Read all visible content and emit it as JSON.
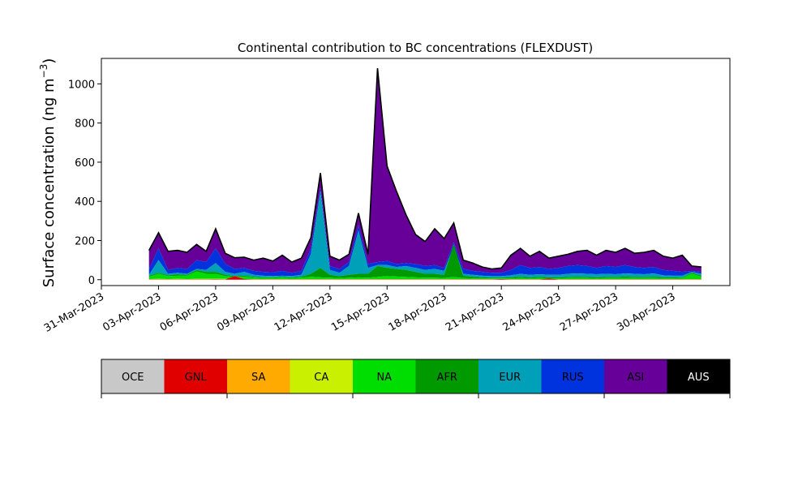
{
  "chart_data": {
    "type": "area",
    "title": "Continental contribution to BC concentrations (FLEXDUST)",
    "ylabel_main": "Surface concentration (ng m",
    "ylabel_sup": "−3",
    "ylabel_close": ")",
    "xlabel": "",
    "x_start": "2023-04-02",
    "ylim": [
      -30,
      1130
    ],
    "xlim": [
      "2023-03-31T00:00",
      "2023-05-03T00:00"
    ],
    "yticks": [
      0,
      200,
      400,
      600,
      800,
      1000
    ],
    "xticks": [
      "31-Mar-2023",
      "03-Apr-2023",
      "06-Apr-2023",
      "09-Apr-2023",
      "12-Apr-2023",
      "15-Apr-2023",
      "18-Apr-2023",
      "21-Apr-2023",
      "24-Apr-2023",
      "27-Apr-2023",
      "30-Apr-2023"
    ],
    "xtick_dates": [
      "2023-03-31",
      "2023-04-03",
      "2023-04-06",
      "2023-04-09",
      "2023-04-12",
      "2023-04-15",
      "2023-04-18",
      "2023-04-21",
      "2023-04-24",
      "2023-04-27",
      "2023-04-30"
    ],
    "total_x": [
      "2023-04-02T12:00",
      "2023-04-03T00:00",
      "2023-04-03T12:00",
      "2023-04-04T00:00",
      "2023-04-04T12:00",
      "2023-04-05T00:00",
      "2023-04-05T12:00",
      "2023-04-06T00:00",
      "2023-04-06T12:00",
      "2023-04-07T00:00",
      "2023-04-07T12:00",
      "2023-04-08T00:00",
      "2023-04-08T12:00",
      "2023-04-09T00:00",
      "2023-04-09T12:00",
      "2023-04-10T00:00",
      "2023-04-10T12:00",
      "2023-04-11T00:00",
      "2023-04-11T12:00",
      "2023-04-12T00:00",
      "2023-04-12T12:00",
      "2023-04-13T00:00",
      "2023-04-13T12:00",
      "2023-04-14T00:00",
      "2023-04-14T12:00",
      "2023-04-15T00:00",
      "2023-04-15T12:00",
      "2023-04-16T00:00",
      "2023-04-16T12:00",
      "2023-04-17T00:00",
      "2023-04-17T12:00",
      "2023-04-18T00:00",
      "2023-04-18T12:00",
      "2023-04-19T00:00",
      "2023-04-19T12:00",
      "2023-04-20T00:00",
      "2023-04-20T12:00",
      "2023-04-21T00:00",
      "2023-04-21T12:00",
      "2023-04-22T00:00",
      "2023-04-22T12:00",
      "2023-04-23T00:00",
      "2023-04-23T12:00",
      "2023-04-24T00:00",
      "2023-04-24T12:00",
      "2023-04-25T00:00",
      "2023-04-25T12:00",
      "2023-04-26T00:00",
      "2023-04-26T12:00",
      "2023-04-27T00:00",
      "2023-04-27T12:00",
      "2023-04-28T00:00",
      "2023-04-28T12:00",
      "2023-04-29T00:00",
      "2023-04-29T12:00",
      "2023-04-30T00:00",
      "2023-04-30T12:00",
      "2023-05-01T00:00",
      "2023-05-01T12:00"
    ],
    "total_y": [
      150,
      240,
      145,
      150,
      140,
      180,
      145,
      260,
      135,
      112,
      115,
      100,
      110,
      95,
      125,
      90,
      110,
      215,
      545,
      120,
      100,
      130,
      340,
      130,
      1080,
      580,
      450,
      330,
      230,
      195,
      260,
      210,
      290,
      100,
      85,
      65,
      55,
      60,
      125,
      160,
      120,
      145,
      110,
      120,
      130,
      145,
      150,
      125,
      150,
      140,
      160,
      135,
      140,
      150,
      120,
      110,
      125,
      70,
      65
    ],
    "series": [
      {
        "name": "ASI",
        "values": [
          150,
          240,
          145,
          150,
          140,
          180,
          145,
          260,
          135,
          112,
          115,
          100,
          110,
          95,
          125,
          90,
          110,
          215,
          545,
          120,
          100,
          130,
          340,
          130,
          1080,
          580,
          450,
          330,
          230,
          195,
          260,
          210,
          290,
          100,
          85,
          65,
          55,
          60,
          125,
          160,
          120,
          145,
          110,
          120,
          130,
          145,
          150,
          125,
          150,
          140,
          160,
          135,
          140,
          150,
          120,
          110,
          125,
          70,
          65
        ]
      },
      {
        "name": "RUS",
        "values": [
          55,
          160,
          50,
          60,
          55,
          100,
          90,
          160,
          80,
          55,
          60,
          45,
          40,
          38,
          45,
          35,
          45,
          160,
          470,
          70,
          55,
          90,
          280,
          80,
          90,
          95,
          80,
          85,
          80,
          70,
          75,
          60,
          190,
          55,
          45,
          40,
          35,
          35,
          50,
          75,
          60,
          65,
          55,
          60,
          70,
          75,
          70,
          60,
          70,
          65,
          75,
          65,
          60,
          65,
          50,
          45,
          40,
          45,
          40
        ]
      },
      {
        "name": "EUR",
        "values": [
          25,
          100,
          30,
          35,
          30,
          55,
          50,
          85,
          40,
          30,
          40,
          25,
          20,
          18,
          20,
          18,
          25,
          130,
          450,
          50,
          35,
          70,
          250,
          60,
          75,
          75,
          65,
          70,
          60,
          50,
          55,
          45,
          170,
          30,
          25,
          20,
          18,
          18,
          22,
          30,
          25,
          28,
          25,
          25,
          30,
          32,
          30,
          28,
          30,
          28,
          32,
          30,
          28,
          32,
          22,
          20,
          20,
          40,
          30
        ]
      },
      {
        "name": "AFR",
        "values": [
          20,
          35,
          22,
          28,
          25,
          50,
          40,
          40,
          25,
          18,
          20,
          15,
          12,
          12,
          14,
          12,
          15,
          30,
          60,
          25,
          18,
          25,
          30,
          30,
          70,
          60,
          55,
          50,
          40,
          30,
          30,
          25,
          180,
          20,
          15,
          12,
          10,
          10,
          12,
          15,
          12,
          15,
          12,
          12,
          14,
          15,
          14,
          12,
          14,
          14,
          16,
          14,
          14,
          15,
          12,
          12,
          12,
          35,
          20
        ]
      },
      {
        "name": "NA",
        "values": [
          15,
          30,
          18,
          20,
          20,
          42,
          30,
          30,
          18,
          14,
          15,
          11,
          9,
          9,
          10,
          9,
          10,
          15,
          12,
          10,
          8,
          10,
          12,
          10,
          14,
          18,
          16,
          14,
          12,
          10,
          10,
          9,
          14,
          8,
          7,
          6,
          6,
          6,
          7,
          8,
          7,
          8,
          7,
          7,
          8,
          8,
          8,
          7,
          8,
          8,
          9,
          8,
          8,
          8,
          7,
          7,
          8,
          30,
          15
        ]
      },
      {
        "name": "CA",
        "values": [
          3,
          4,
          3,
          4,
          3,
          4,
          4,
          5,
          4,
          3,
          3,
          3,
          2,
          3,
          3,
          2,
          3,
          3,
          3,
          3,
          2,
          3,
          3,
          3,
          3,
          3,
          3,
          3,
          3,
          3,
          3,
          3,
          3,
          2,
          2,
          2,
          2,
          2,
          2,
          2,
          2,
          2,
          2,
          2,
          2,
          2,
          2,
          2,
          2,
          2,
          2,
          2,
          2,
          2,
          2,
          2,
          2,
          3,
          2
        ]
      },
      {
        "name": "SA",
        "values": [
          2,
          2,
          2,
          2,
          2,
          2,
          2,
          2,
          2,
          2,
          3,
          2,
          2,
          2,
          2,
          2,
          2,
          2,
          2,
          2,
          2,
          2,
          2,
          2,
          2,
          2,
          2,
          2,
          2,
          2,
          2,
          2,
          2,
          2,
          2,
          2,
          2,
          2,
          2,
          2,
          2,
          2,
          2,
          2,
          2,
          2,
          2,
          2,
          2,
          2,
          2,
          2,
          2,
          2,
          2,
          2,
          2,
          2,
          2
        ]
      },
      {
        "name": "GNL",
        "values": [
          1,
          1,
          1,
          1,
          1,
          1,
          1,
          2,
          1,
          18,
          3,
          1,
          1,
          1,
          1,
          1,
          1,
          1,
          1,
          1,
          1,
          1,
          1,
          1,
          1,
          1,
          1,
          1,
          1,
          1,
          1,
          1,
          1,
          1,
          1,
          1,
          1,
          3,
          1,
          1,
          1,
          1,
          6,
          1,
          1,
          1,
          1,
          1,
          1,
          1,
          1,
          1,
          1,
          1,
          1,
          1,
          1,
          1,
          1
        ]
      },
      {
        "name": "OCE",
        "values": [
          0,
          0,
          0,
          0,
          0,
          0,
          0,
          0,
          0,
          0,
          0,
          0,
          0,
          0,
          0,
          0,
          0,
          0,
          0,
          0,
          0,
          0,
          0,
          0,
          0,
          0,
          0,
          0,
          0,
          0,
          0,
          0,
          0,
          0,
          0,
          0,
          0,
          0,
          0,
          0,
          0,
          0,
          0,
          0,
          0,
          0,
          0,
          0,
          0,
          0,
          0,
          0,
          0,
          0,
          0,
          0,
          0,
          0,
          0
        ]
      }
    ],
    "legend": {
      "placement": "bottom",
      "entries": [
        {
          "label": "OCE",
          "color": "#c8c8c8",
          "text_color": "#000000"
        },
        {
          "label": "GNL",
          "color": "#e00000",
          "text_color": "#000000"
        },
        {
          "label": "SA",
          "color": "#ffaa00",
          "text_color": "#000000"
        },
        {
          "label": "CA",
          "color": "#c8f000",
          "text_color": "#000000"
        },
        {
          "label": "NA",
          "color": "#00dd00",
          "text_color": "#000000"
        },
        {
          "label": "AFR",
          "color": "#009900",
          "text_color": "#000000"
        },
        {
          "label": "EUR",
          "color": "#00a0b8",
          "text_color": "#000000"
        },
        {
          "label": "RUS",
          "color": "#0033dd",
          "text_color": "#000000"
        },
        {
          "label": "ASI",
          "color": "#660099",
          "text_color": "#000000"
        },
        {
          "label": "AUS",
          "color": "#000000",
          "text_color": "#ffffff"
        }
      ]
    },
    "grid": false
  }
}
